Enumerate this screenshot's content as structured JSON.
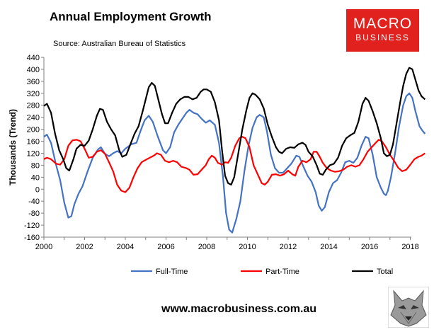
{
  "title": "Annual Employment Growth",
  "source": "Source: Australian Bureau of Statistics",
  "logo": {
    "line1": "MACRO",
    "line2": "BUSINESS"
  },
  "footer": "www.macrobusiness.com.au",
  "chart_data": {
    "type": "line",
    "ylabel": "Thousands (Trend)",
    "ylim": [
      -160,
      440
    ],
    "yticks": [
      -160,
      -120,
      -80,
      -40,
      0,
      40,
      80,
      120,
      160,
      200,
      240,
      280,
      320,
      360,
      400,
      440
    ],
    "xlim": [
      2000,
      2018.05
    ],
    "xticks": [
      2000,
      2002,
      2004,
      2006,
      2008,
      2010,
      2012,
      2014,
      2016,
      2018
    ],
    "grid": false,
    "legend_position": "bottom",
    "series": [
      {
        "name": "Full-Time",
        "color": "#4472c4",
        "points": [
          [
            2000,
            175
          ],
          [
            2000.15,
            182
          ],
          [
            2000.35,
            155
          ],
          [
            2000.6,
            80
          ],
          [
            2000.8,
            30
          ],
          [
            2001.0,
            -45
          ],
          [
            2001.2,
            -95
          ],
          [
            2001.35,
            -90
          ],
          [
            2001.5,
            -50
          ],
          [
            2001.7,
            -15
          ],
          [
            2001.9,
            10
          ],
          [
            2002.15,
            60
          ],
          [
            2002.4,
            105
          ],
          [
            2002.65,
            132
          ],
          [
            2002.8,
            140
          ],
          [
            2003.0,
            118
          ],
          [
            2003.2,
            110
          ],
          [
            2003.4,
            120
          ],
          [
            2003.6,
            127
          ],
          [
            2003.8,
            120
          ],
          [
            2004.0,
            135
          ],
          [
            2004.3,
            150
          ],
          [
            2004.55,
            155
          ],
          [
            2004.75,
            195
          ],
          [
            2004.95,
            230
          ],
          [
            2005.15,
            245
          ],
          [
            2005.35,
            225
          ],
          [
            2005.6,
            175
          ],
          [
            2005.85,
            130
          ],
          [
            2006.0,
            120
          ],
          [
            2006.2,
            140
          ],
          [
            2006.4,
            190
          ],
          [
            2006.6,
            215
          ],
          [
            2006.8,
            235
          ],
          [
            2007.0,
            255
          ],
          [
            2007.15,
            265
          ],
          [
            2007.35,
            255
          ],
          [
            2007.55,
            250
          ],
          [
            2007.75,
            235
          ],
          [
            2007.95,
            222
          ],
          [
            2008.15,
            230
          ],
          [
            2008.4,
            215
          ],
          [
            2008.6,
            155
          ],
          [
            2008.8,
            40
          ],
          [
            2008.95,
            -80
          ],
          [
            2009.1,
            -135
          ],
          [
            2009.25,
            -145
          ],
          [
            2009.45,
            -100
          ],
          [
            2009.65,
            -40
          ],
          [
            2009.85,
            60
          ],
          [
            2010.05,
            145
          ],
          [
            2010.25,
            205
          ],
          [
            2010.45,
            240
          ],
          [
            2010.6,
            248
          ],
          [
            2010.8,
            240
          ],
          [
            2010.95,
            195
          ],
          [
            2011.15,
            115
          ],
          [
            2011.35,
            70
          ],
          [
            2011.55,
            55
          ],
          [
            2011.75,
            55
          ],
          [
            2011.95,
            70
          ],
          [
            2012.15,
            85
          ],
          [
            2012.4,
            112
          ],
          [
            2012.55,
            108
          ],
          [
            2012.75,
            75
          ],
          [
            2012.95,
            45
          ],
          [
            2013.15,
            25
          ],
          [
            2013.35,
            -10
          ],
          [
            2013.5,
            -55
          ],
          [
            2013.65,
            -72
          ],
          [
            2013.8,
            -60
          ],
          [
            2014.0,
            -10
          ],
          [
            2014.2,
            20
          ],
          [
            2014.4,
            30
          ],
          [
            2014.6,
            55
          ],
          [
            2014.8,
            90
          ],
          [
            2015.0,
            95
          ],
          [
            2015.2,
            88
          ],
          [
            2015.4,
            105
          ],
          [
            2015.6,
            145
          ],
          [
            2015.8,
            175
          ],
          [
            2015.95,
            170
          ],
          [
            2016.15,
            115
          ],
          [
            2016.35,
            40
          ],
          [
            2016.55,
            5
          ],
          [
            2016.7,
            -15
          ],
          [
            2016.8,
            -20
          ],
          [
            2016.9,
            -5
          ],
          [
            2017.05,
            40
          ],
          [
            2017.25,
            120
          ],
          [
            2017.45,
            210
          ],
          [
            2017.65,
            280
          ],
          [
            2017.8,
            310
          ],
          [
            2017.95,
            320
          ],
          [
            2018.1,
            305
          ],
          [
            2018.25,
            260
          ],
          [
            2018.45,
            210
          ],
          [
            2018.6,
            195
          ],
          [
            2018.72,
            185
          ]
        ]
      },
      {
        "name": "Part-Time",
        "color": "#ff0000",
        "points": [
          [
            2000,
            100
          ],
          [
            2000.15,
            105
          ],
          [
            2000.35,
            100
          ],
          [
            2000.6,
            85
          ],
          [
            2000.8,
            82
          ],
          [
            2001.0,
            100
          ],
          [
            2001.2,
            145
          ],
          [
            2001.4,
            163
          ],
          [
            2001.6,
            165
          ],
          [
            2001.8,
            160
          ],
          [
            2002.0,
            135
          ],
          [
            2002.2,
            105
          ],
          [
            2002.4,
            108
          ],
          [
            2002.6,
            125
          ],
          [
            2002.8,
            130
          ],
          [
            2003.0,
            118
          ],
          [
            2003.2,
            90
          ],
          [
            2003.4,
            60
          ],
          [
            2003.6,
            15
          ],
          [
            2003.8,
            -5
          ],
          [
            2004.0,
            -10
          ],
          [
            2004.2,
            5
          ],
          [
            2004.4,
            40
          ],
          [
            2004.6,
            70
          ],
          [
            2004.8,
            90
          ],
          [
            2005.0,
            98
          ],
          [
            2005.2,
            105
          ],
          [
            2005.4,
            112
          ],
          [
            2005.55,
            120
          ],
          [
            2005.75,
            115
          ],
          [
            2005.95,
            95
          ],
          [
            2006.15,
            90
          ],
          [
            2006.35,
            95
          ],
          [
            2006.55,
            90
          ],
          [
            2006.75,
            75
          ],
          [
            2007.0,
            70
          ],
          [
            2007.15,
            65
          ],
          [
            2007.35,
            48
          ],
          [
            2007.55,
            50
          ],
          [
            2007.75,
            65
          ],
          [
            2007.95,
            80
          ],
          [
            2008.1,
            100
          ],
          [
            2008.25,
            112
          ],
          [
            2008.4,
            105
          ],
          [
            2008.55,
            88
          ],
          [
            2008.75,
            82
          ],
          [
            2008.9,
            90
          ],
          [
            2009.05,
            88
          ],
          [
            2009.2,
            105
          ],
          [
            2009.4,
            145
          ],
          [
            2009.6,
            170
          ],
          [
            2009.75,
            175
          ],
          [
            2009.9,
            170
          ],
          [
            2010.1,
            140
          ],
          [
            2010.3,
            80
          ],
          [
            2010.5,
            50
          ],
          [
            2010.7,
            20
          ],
          [
            2010.85,
            15
          ],
          [
            2011.0,
            25
          ],
          [
            2011.2,
            48
          ],
          [
            2011.4,
            50
          ],
          [
            2011.6,
            45
          ],
          [
            2011.8,
            50
          ],
          [
            2012.0,
            62
          ],
          [
            2012.2,
            50
          ],
          [
            2012.35,
            45
          ],
          [
            2012.5,
            75
          ],
          [
            2012.7,
            95
          ],
          [
            2012.9,
            90
          ],
          [
            2013.1,
            100
          ],
          [
            2013.25,
            125
          ],
          [
            2013.4,
            125
          ],
          [
            2013.55,
            108
          ],
          [
            2013.7,
            88
          ],
          [
            2013.9,
            70
          ],
          [
            2014.1,
            62
          ],
          [
            2014.3,
            58
          ],
          [
            2014.5,
            60
          ],
          [
            2014.7,
            65
          ],
          [
            2014.9,
            75
          ],
          [
            2015.1,
            80
          ],
          [
            2015.3,
            75
          ],
          [
            2015.5,
            80
          ],
          [
            2015.7,
            100
          ],
          [
            2015.9,
            125
          ],
          [
            2016.1,
            140
          ],
          [
            2016.3,
            155
          ],
          [
            2016.45,
            165
          ],
          [
            2016.6,
            160
          ],
          [
            2016.8,
            140
          ],
          [
            2017.0,
            115
          ],
          [
            2017.2,
            95
          ],
          [
            2017.4,
            72
          ],
          [
            2017.6,
            60
          ],
          [
            2017.8,
            65
          ],
          [
            2018.0,
            82
          ],
          [
            2018.2,
            100
          ],
          [
            2018.4,
            108
          ],
          [
            2018.55,
            112
          ],
          [
            2018.72,
            120
          ]
        ]
      },
      {
        "name": "Total",
        "color": "#000000",
        "points": [
          [
            2000,
            278
          ],
          [
            2000.15,
            285
          ],
          [
            2000.35,
            255
          ],
          [
            2000.55,
            185
          ],
          [
            2000.75,
            130
          ],
          [
            2000.95,
            100
          ],
          [
            2001.1,
            70
          ],
          [
            2001.25,
            62
          ],
          [
            2001.45,
            100
          ],
          [
            2001.6,
            135
          ],
          [
            2001.8,
            148
          ],
          [
            2002.0,
            145
          ],
          [
            2002.2,
            162
          ],
          [
            2002.4,
            200
          ],
          [
            2002.6,
            245
          ],
          [
            2002.75,
            268
          ],
          [
            2002.9,
            265
          ],
          [
            2003.1,
            225
          ],
          [
            2003.3,
            200
          ],
          [
            2003.5,
            180
          ],
          [
            2003.7,
            130
          ],
          [
            2003.85,
            108
          ],
          [
            2004.05,
            115
          ],
          [
            2004.25,
            150
          ],
          [
            2004.45,
            185
          ],
          [
            2004.65,
            210
          ],
          [
            2004.85,
            260
          ],
          [
            2005.0,
            300
          ],
          [
            2005.15,
            340
          ],
          [
            2005.3,
            355
          ],
          [
            2005.45,
            345
          ],
          [
            2005.6,
            305
          ],
          [
            2005.8,
            250
          ],
          [
            2005.95,
            220
          ],
          [
            2006.1,
            220
          ],
          [
            2006.3,
            255
          ],
          [
            2006.5,
            285
          ],
          [
            2006.7,
            300
          ],
          [
            2006.9,
            308
          ],
          [
            2007.1,
            308
          ],
          [
            2007.3,
            300
          ],
          [
            2007.5,
            305
          ],
          [
            2007.7,
            325
          ],
          [
            2007.85,
            333
          ],
          [
            2008.0,
            333
          ],
          [
            2008.2,
            325
          ],
          [
            2008.4,
            290
          ],
          [
            2008.6,
            230
          ],
          [
            2008.75,
            130
          ],
          [
            2008.9,
            45
          ],
          [
            2009.05,
            20
          ],
          [
            2009.2,
            15
          ],
          [
            2009.35,
            40
          ],
          [
            2009.55,
            120
          ],
          [
            2009.75,
            200
          ],
          [
            2009.95,
            265
          ],
          [
            2010.1,
            305
          ],
          [
            2010.25,
            320
          ],
          [
            2010.4,
            315
          ],
          [
            2010.6,
            300
          ],
          [
            2010.8,
            270
          ],
          [
            2011.0,
            215
          ],
          [
            2011.2,
            175
          ],
          [
            2011.4,
            140
          ],
          [
            2011.55,
            125
          ],
          [
            2011.7,
            120
          ],
          [
            2011.9,
            135
          ],
          [
            2012.1,
            140
          ],
          [
            2012.3,
            138
          ],
          [
            2012.5,
            150
          ],
          [
            2012.7,
            155
          ],
          [
            2012.85,
            148
          ],
          [
            2013.0,
            125
          ],
          [
            2013.2,
            110
          ],
          [
            2013.4,
            80
          ],
          [
            2013.55,
            52
          ],
          [
            2013.7,
            48
          ],
          [
            2013.85,
            65
          ],
          [
            2014.05,
            80
          ],
          [
            2014.25,
            85
          ],
          [
            2014.45,
            105
          ],
          [
            2014.65,
            145
          ],
          [
            2014.85,
            170
          ],
          [
            2015.05,
            180
          ],
          [
            2015.25,
            188
          ],
          [
            2015.45,
            225
          ],
          [
            2015.65,
            285
          ],
          [
            2015.8,
            305
          ],
          [
            2015.95,
            295
          ],
          [
            2016.15,
            260
          ],
          [
            2016.35,
            220
          ],
          [
            2016.55,
            170
          ],
          [
            2016.7,
            120
          ],
          [
            2016.85,
            110
          ],
          [
            2017.0,
            115
          ],
          [
            2017.15,
            150
          ],
          [
            2017.3,
            210
          ],
          [
            2017.5,
            290
          ],
          [
            2017.65,
            345
          ],
          [
            2017.8,
            385
          ],
          [
            2017.95,
            405
          ],
          [
            2018.1,
            400
          ],
          [
            2018.25,
            365
          ],
          [
            2018.4,
            330
          ],
          [
            2018.55,
            310
          ],
          [
            2018.72,
            300
          ]
        ]
      }
    ]
  }
}
